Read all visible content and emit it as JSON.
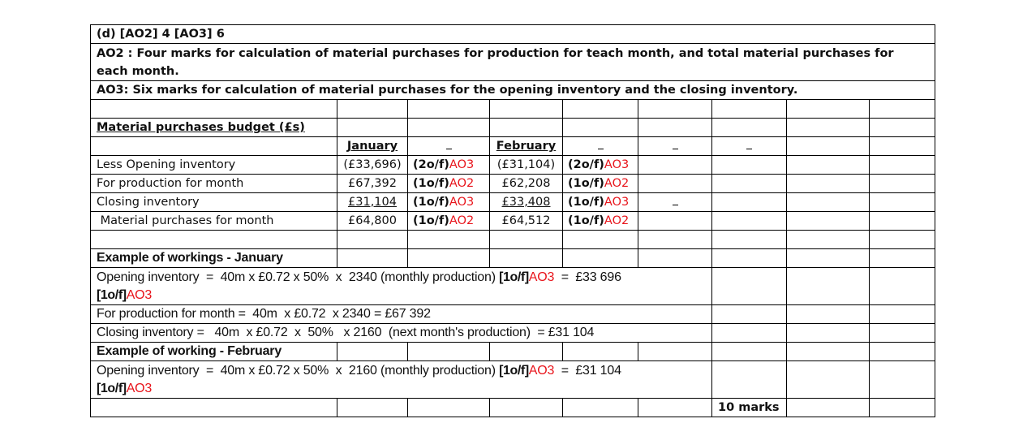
{
  "header": {
    "title": "(d)  [AO2] 4  [AO3] 6",
    "ao2": "AO2 : Four marks for calculation of material purchases for production for teach month, and total material purchases for each month.",
    "ao3": "AO3: Six marks for calculation of material purchases for the opening inventory and the closing inventory."
  },
  "budget": {
    "title": "Material purchases budget (£s)",
    "months": [
      "January",
      "February"
    ],
    "rows": [
      {
        "label": "Less Opening inventory",
        "jan": "(£33,696)",
        "jan_mark": "(2o/f)",
        "jan_ao": "AO3",
        "feb": "(£31,104)",
        "feb_mark": "(2o/f)",
        "feb_ao": "AO3"
      },
      {
        "label": "For production for month",
        "jan": "£67,392",
        "jan_mark": "(1o/f)",
        "jan_ao": "AO2",
        "feb": "£62,208",
        "feb_mark": "(1o/f)",
        "feb_ao": "AO2"
      },
      {
        "label": "Closing inventory",
        "jan": "£31,104",
        "jan_mark": "(1o/f)",
        "jan_ao": "AO3",
        "feb": "£33,408",
        "feb_mark": "(1o/f)",
        "feb_ao": "AO3"
      },
      {
        "label": " Material purchases for month",
        "jan": "£64,800",
        "jan_mark": "(1o/f)",
        "jan_ao": "AO2",
        "feb": "£64,512",
        "feb_mark": "(1o/f)",
        "feb_ao": "AO2"
      }
    ]
  },
  "workings_jan": {
    "title": "Example of workings - January",
    "opening_pre": "Opening inventory  =  40m x £0.72 x 50%  x  2340 (monthly production) ",
    "opening_mark1": "[1o/f]",
    "opening_ao1": "AO3",
    "opening_mid": "  =  £33 696 ",
    "opening_mark2": "[1o/f]",
    "opening_ao2": "AO3",
    "production": "For production for month =  40m  x £0.72  x 2340 = £67 392",
    "closing": "Closing inventory =   40m  x £0.72  x  50%   x 2160  (next month's production)  = £31 104"
  },
  "workings_feb": {
    "title": "Example of working - February",
    "opening_pre": "Opening inventory  =  40m x £0.72 x 50%  x  2160 (monthly production) ",
    "opening_mark1": "[1o/f]",
    "opening_ao1": "AO3",
    "opening_mid": "  =  £31 104",
    "opening_mark2": "[1o/f]",
    "opening_ao2": "AO3"
  },
  "total": "10 marks",
  "colors": {
    "ao_text": "#e8141b",
    "border": "#000000"
  }
}
